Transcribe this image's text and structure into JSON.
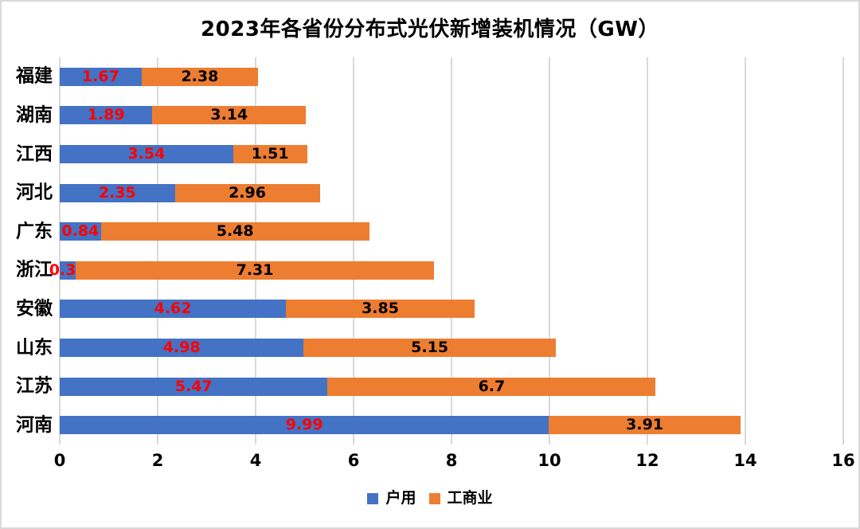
{
  "chart_data": {
    "type": "bar",
    "orientation": "horizontal",
    "stacked": true,
    "title": "2023年各省份分布式光伏新增装机情况（GW）",
    "categories": [
      "福建",
      "湖南",
      "江西",
      "河北",
      "广东",
      "浙江",
      "安徽",
      "山东",
      "江苏",
      "河南"
    ],
    "series": [
      {
        "name": "户用",
        "color": "#4472C4",
        "label_color": "#FF0000",
        "values": [
          1.67,
          1.89,
          3.54,
          2.35,
          0.84,
          0.33,
          4.62,
          4.98,
          5.47,
          9.99
        ]
      },
      {
        "name": "工商业",
        "color": "#ED7D31",
        "label_color": "#000000",
        "values": [
          2.38,
          3.14,
          1.51,
          2.96,
          5.48,
          7.31,
          3.85,
          5.15,
          6.7,
          3.91
        ]
      }
    ],
    "x_axis": {
      "min": 0,
      "max": 16,
      "tick_step": 2,
      "ticks": [
        0,
        2,
        4,
        6,
        8,
        10,
        12,
        14,
        16
      ]
    },
    "grid": true,
    "legend_position": "bottom",
    "colors": {
      "gridline": "#d9d9d9",
      "border": "#d9d9d9",
      "background": "#ffffff",
      "value_label_series1": "#FF0000",
      "value_label_series2": "#000000"
    }
  }
}
